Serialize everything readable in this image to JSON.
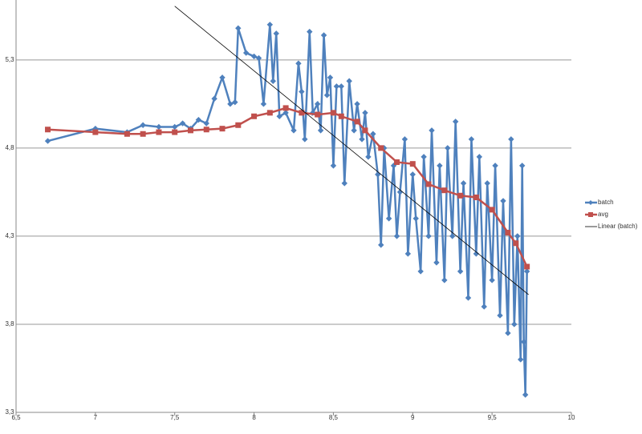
{
  "chart_data": {
    "type": "line",
    "xlim": [
      6.5,
      10
    ],
    "ylim": [
      3.3,
      5.64
    ],
    "xticks": [
      {
        "value": 6.5,
        "label": "6,5"
      },
      7,
      {
        "value": 7.5,
        "label": "7,5"
      },
      8,
      {
        "value": 8.5,
        "label": "8,5"
      },
      9,
      {
        "value": 9.5,
        "label": "9,5"
      },
      10
    ],
    "yticks": [
      {
        "value": 3.3,
        "label": "3,3"
      },
      {
        "value": 3.8,
        "label": "3,8"
      },
      {
        "value": 4.3,
        "label": "4,3"
      },
      {
        "value": 4.8,
        "label": "4,8"
      },
      {
        "value": 5.3,
        "label": "5,3"
      }
    ],
    "grid": true,
    "legend": "right",
    "series": [
      {
        "name": "batch",
        "color": "#4f81bd",
        "marker": "diamond",
        "x": [
          6.7,
          7.0,
          7.2,
          7.3,
          7.4,
          7.5,
          7.55,
          7.6,
          7.65,
          7.7,
          7.75,
          7.8,
          7.85,
          7.88,
          7.9,
          7.95,
          8.0,
          8.03,
          8.06,
          8.1,
          8.12,
          8.14,
          8.16,
          8.2,
          8.25,
          8.28,
          8.3,
          8.32,
          8.35,
          8.37,
          8.4,
          8.42,
          8.44,
          8.46,
          8.48,
          8.5,
          8.52,
          8.55,
          8.57,
          8.6,
          8.63,
          8.65,
          8.68,
          8.7,
          8.72,
          8.75,
          8.78,
          8.8,
          8.82,
          8.85,
          8.88,
          8.9,
          8.92,
          8.95,
          8.97,
          9.0,
          9.02,
          9.05,
          9.07,
          9.1,
          9.12,
          9.15,
          9.17,
          9.2,
          9.22,
          9.25,
          9.27,
          9.3,
          9.32,
          9.35,
          9.37,
          9.4,
          9.42,
          9.45,
          9.47,
          9.5,
          9.52,
          9.55,
          9.57,
          9.6,
          9.62,
          9.64,
          9.66,
          9.68,
          9.69,
          9.7,
          9.71,
          9.72
        ],
        "values": [
          4.84,
          4.91,
          4.89,
          4.93,
          4.92,
          4.92,
          4.94,
          4.91,
          4.96,
          4.94,
          5.08,
          5.2,
          5.05,
          5.06,
          5.48,
          5.34,
          5.32,
          5.31,
          5.05,
          5.5,
          5.18,
          5.45,
          4.98,
          5.0,
          4.9,
          5.28,
          5.12,
          4.85,
          5.46,
          5.0,
          5.05,
          4.9,
          5.44,
          5.1,
          5.2,
          4.7,
          5.15,
          5.15,
          4.6,
          5.18,
          4.9,
          5.05,
          4.85,
          5.0,
          4.75,
          4.88,
          4.65,
          4.25,
          4.8,
          4.4,
          4.7,
          4.3,
          4.55,
          4.85,
          4.2,
          4.65,
          4.4,
          4.1,
          4.75,
          4.3,
          4.9,
          4.15,
          4.7,
          4.05,
          4.8,
          4.3,
          4.95,
          4.1,
          4.6,
          3.95,
          4.85,
          4.2,
          4.75,
          3.9,
          4.6,
          4.05,
          4.7,
          3.85,
          4.5,
          3.75,
          4.85,
          3.8,
          4.3,
          3.6,
          4.7,
          3.7,
          3.4,
          4.1
        ]
      },
      {
        "name": "avg",
        "color": "#c0504d",
        "marker": "square",
        "x": [
          6.7,
          7.0,
          7.2,
          7.3,
          7.4,
          7.5,
          7.6,
          7.7,
          7.8,
          7.9,
          8.0,
          8.1,
          8.2,
          8.3,
          8.4,
          8.5,
          8.55,
          8.65,
          8.7,
          8.8,
          8.9,
          9.0,
          9.1,
          9.2,
          9.3,
          9.4,
          9.5,
          9.6,
          9.65,
          9.72
        ],
        "values": [
          4.905,
          4.89,
          4.88,
          4.88,
          4.89,
          4.89,
          4.9,
          4.905,
          4.91,
          4.93,
          4.98,
          5.0,
          5.027,
          5.0,
          4.99,
          5.0,
          4.98,
          4.95,
          4.9,
          4.8,
          4.72,
          4.71,
          4.595,
          4.56,
          4.53,
          4.52,
          4.45,
          4.32,
          4.26,
          4.127
        ]
      },
      {
        "name": "Linear (batch)",
        "color": "#000000",
        "marker": "none",
        "x": [
          7.5,
          9.73
        ],
        "values": [
          5.605,
          3.968
        ]
      }
    ]
  }
}
